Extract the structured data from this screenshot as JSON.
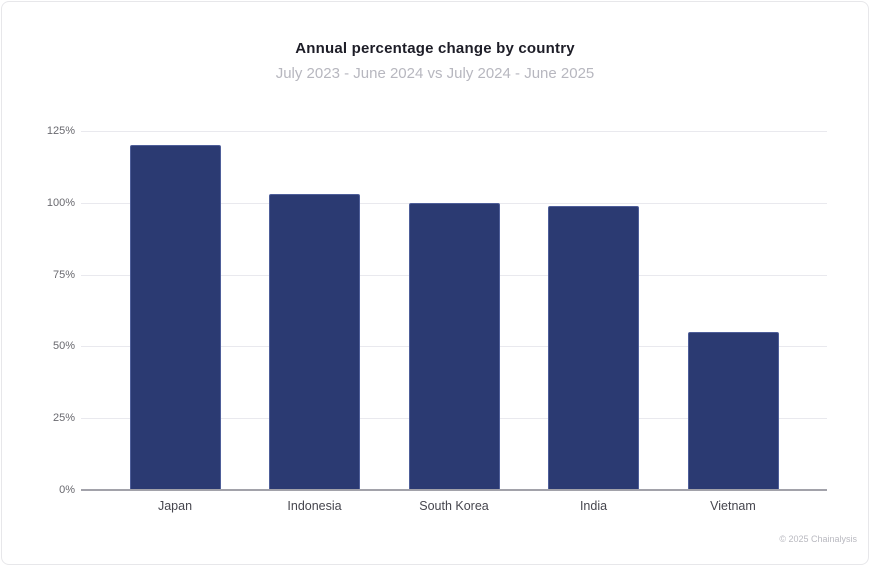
{
  "card": {
    "title": "Annual percentage change by country",
    "subtitle": "July 2023 - June 2024 vs July 2024 - June 2025",
    "copyright": "© 2025 Chainalysis"
  },
  "chart_data": {
    "type": "bar",
    "title": "Annual percentage change by country",
    "subtitle": "July 2023 - June 2024 vs July 2024 - June 2025",
    "categories": [
      "Japan",
      "Indonesia",
      "South Korea",
      "India",
      "Vietnam"
    ],
    "values": [
      120,
      103,
      100,
      99,
      55
    ],
    "unit": "%",
    "xlabel": "",
    "ylabel": "",
    "ylim": [
      0,
      125
    ],
    "yticks": [
      0,
      25,
      50,
      75,
      100,
      125
    ],
    "ytick_labels": [
      "0%",
      "25%",
      "50%",
      "75%",
      "100%",
      "125%"
    ],
    "grid": true,
    "legend": false,
    "bar_color": "#2b3a72"
  }
}
